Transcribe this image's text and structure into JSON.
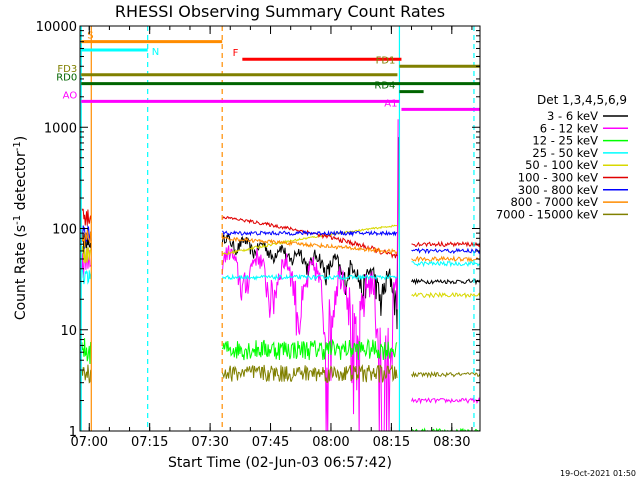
{
  "chart_data": {
    "type": "line",
    "title": "RHESSI Observing Summary Count Rates",
    "xlabel": "Start Time (02-Jun-03 06:57:42)",
    "ylabel": "Count Rate (s⁻¹ detector⁻¹)",
    "ylabel_main": "Count Rate (s",
    "ylabel_sup1": "-1",
    "ylabel_mid": " detector",
    "ylabel_sup2": "-1",
    "ylabel_end": ")",
    "yscale": "log",
    "ylim": [
      1,
      10000
    ],
    "xlim": [
      "06:57:42",
      "08:37:00"
    ],
    "yticks": [
      {
        "value": 1,
        "label": "1"
      },
      {
        "value": 10,
        "label": "10"
      },
      {
        "value": 100,
        "label": "100"
      },
      {
        "value": 1000,
        "label": "1000"
      },
      {
        "value": 10000,
        "label": "10000"
      }
    ],
    "xticks": [
      {
        "value": "07:00",
        "label": "07:00"
      },
      {
        "value": "07:15",
        "label": "07:15"
      },
      {
        "value": "07:30",
        "label": "07:30"
      },
      {
        "value": "07:45",
        "label": "07:45"
      },
      {
        "value": "08:00",
        "label": "08:00"
      },
      {
        "value": "08:15",
        "label": "08:15"
      },
      {
        "value": "08:30",
        "label": "08:30"
      }
    ],
    "legend_title": "Det 1,3,4,5,6,9",
    "legend_position": "right",
    "series": [
      {
        "name": "3 - 6 keV",
        "color": "#000000"
      },
      {
        "name": "6 - 12 keV",
        "color": "#ff00ff"
      },
      {
        "name": "12 - 25 keV",
        "color": "#00ff00"
      },
      {
        "name": "25 - 50 keV",
        "color": "#00ffff"
      },
      {
        "name": "50 - 100 keV",
        "color": "#d8d800"
      },
      {
        "name": "100 - 300 keV",
        "color": "#e00000"
      },
      {
        "name": "300 - 800 keV",
        "color": "#0000ff"
      },
      {
        "name": "800 - 7000 keV",
        "color": "#ff8c00"
      },
      {
        "name": "7000 - 15000 keV",
        "color": "#808000"
      }
    ],
    "flag_bars": [
      {
        "label": "S",
        "color": "#ff8c00",
        "start": "06:58:00",
        "end": "07:33:00",
        "level": 7000
      },
      {
        "label": "N",
        "color": "#00ffff",
        "start": "06:58:00",
        "end": "07:14:30",
        "level": 5800
      },
      {
        "label": "F",
        "color": "#ff0000",
        "start": "07:38:00",
        "end": "08:17:30",
        "level": 4700
      },
      {
        "label": "FD1",
        "color": "#808000",
        "start": "08:17:00",
        "end": "08:37:00",
        "level": 4000
      },
      {
        "label": "FD3",
        "color": "#808000",
        "start": "06:58:00",
        "end": "08:16:30",
        "level": 3300
      },
      {
        "label": "RD0",
        "color": "#006400",
        "start": "06:58:00",
        "end": "08:37:00",
        "level": 2700
      },
      {
        "label": "RD4",
        "color": "#006400",
        "start": "08:17:00",
        "end": "08:23:00",
        "level": 2250
      },
      {
        "label": "AO",
        "color": "#ff00ff",
        "start": "06:58:00",
        "end": "08:17:00",
        "level": 1800
      },
      {
        "label": "A1",
        "color": "#ff00ff",
        "start": "08:17:30",
        "end": "08:37:00",
        "level": 1500
      }
    ],
    "markers": [
      {
        "time": "06:58:00",
        "color": "#00ffff",
        "style": "solid"
      },
      {
        "time": "07:00:30",
        "color": "#ff8c00",
        "style": "solid"
      },
      {
        "time": "07:14:30",
        "color": "#00ffff",
        "style": "dashed"
      },
      {
        "time": "07:33:00",
        "color": "#ff8c00",
        "style": "dashed"
      },
      {
        "time": "08:17:00",
        "color": "#00ffff",
        "style": "solid"
      },
      {
        "time": "08:35:30",
        "color": "#00ffff",
        "style": "dashed"
      }
    ],
    "timestamp": "19-Oct-2021 01:50"
  }
}
